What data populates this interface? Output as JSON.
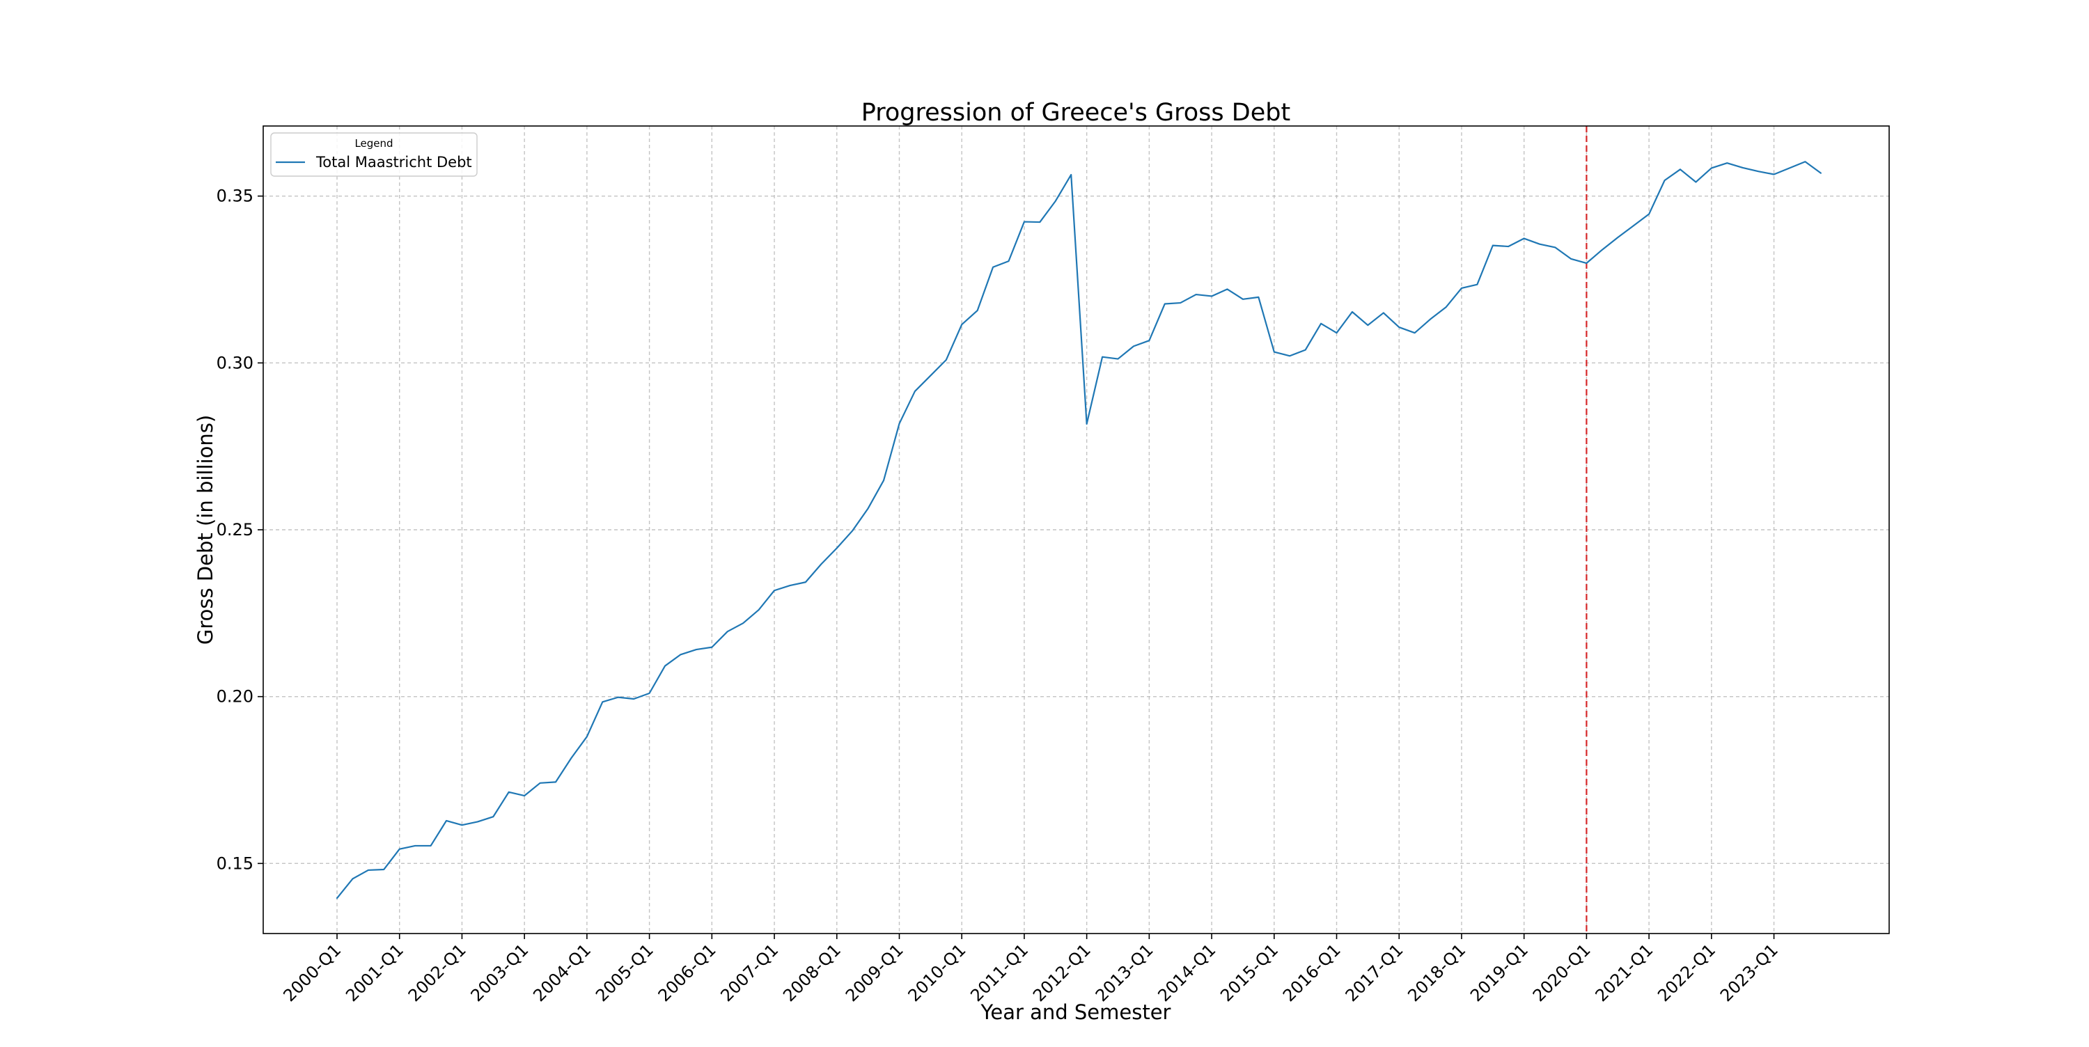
{
  "chart_data": {
    "type": "line",
    "title": "Progression of Greece's Gross Debt",
    "xlabel": "Year and Semester",
    "ylabel": "Gross Debt (in billions)",
    "ylim": [
      0.129,
      0.371
    ],
    "yticks": [
      0.15,
      0.2,
      0.25,
      0.3,
      0.35
    ],
    "ytick_labels": [
      "0.15",
      "0.20",
      "0.25",
      "0.30",
      "0.35"
    ],
    "xtick_labels": [
      "2000-Q1",
      "2001-Q1",
      "2002-Q1",
      "2003-Q1",
      "2004-Q1",
      "2005-Q1",
      "2006-Q1",
      "2007-Q1",
      "2008-Q1",
      "2009-Q1",
      "2010-Q1",
      "2011-Q1",
      "2012-Q1",
      "2013-Q1",
      "2014-Q1",
      "2015-Q1",
      "2016-Q1",
      "2017-Q1",
      "2018-Q1",
      "2019-Q1",
      "2020-Q1",
      "2021-Q1",
      "2022-Q1",
      "2023-Q1"
    ],
    "grid": true,
    "legend": {
      "title": "Legend",
      "position": "upper-left"
    },
    "reference_line": {
      "x": "2020-Q1",
      "color": "#d62728",
      "style": "dashed"
    },
    "series": [
      {
        "name": "Total Maastricht Debt",
        "color": "#1f77b4",
        "x": [
          "2000-Q1",
          "2000-Q2",
          "2000-Q3",
          "2000-Q4",
          "2001-Q1",
          "2001-Q2",
          "2001-Q3",
          "2001-Q4",
          "2002-Q1",
          "2002-Q2",
          "2002-Q3",
          "2002-Q4",
          "2003-Q1",
          "2003-Q2",
          "2003-Q3",
          "2003-Q4",
          "2004-Q1",
          "2004-Q2",
          "2004-Q3",
          "2004-Q4",
          "2005-Q1",
          "2005-Q2",
          "2005-Q3",
          "2005-Q4",
          "2006-Q1",
          "2006-Q2",
          "2006-Q3",
          "2006-Q4",
          "2007-Q1",
          "2007-Q2",
          "2007-Q3",
          "2007-Q4",
          "2008-Q1",
          "2008-Q2",
          "2008-Q3",
          "2008-Q4",
          "2009-Q1",
          "2009-Q2",
          "2009-Q3",
          "2009-Q4",
          "2010-Q1",
          "2010-Q2",
          "2010-Q3",
          "2010-Q4",
          "2011-Q1",
          "2011-Q2",
          "2011-Q3",
          "2011-Q4",
          "2012-Q1",
          "2012-Q2",
          "2012-Q3",
          "2012-Q4",
          "2013-Q1",
          "2013-Q2",
          "2013-Q3",
          "2013-Q4",
          "2014-Q1",
          "2014-Q2",
          "2014-Q3",
          "2014-Q4",
          "2015-Q1",
          "2015-Q2",
          "2015-Q3",
          "2015-Q4",
          "2016-Q1",
          "2016-Q2",
          "2016-Q3",
          "2016-Q4",
          "2017-Q1",
          "2017-Q2",
          "2017-Q3",
          "2017-Q4",
          "2018-Q1",
          "2018-Q2",
          "2018-Q3",
          "2018-Q4",
          "2019-Q1",
          "2019-Q2",
          "2019-Q3",
          "2019-Q4",
          "2020-Q1",
          "2020-Q2",
          "2020-Q3",
          "2020-Q4",
          "2021-Q1",
          "2021-Q2",
          "2021-Q3",
          "2021-Q4",
          "2022-Q1",
          "2022-Q2",
          "2022-Q3",
          "2022-Q4",
          "2023-Q1",
          "2023-Q2",
          "2023-Q3",
          "2023-Q4"
        ],
        "values": [
          0.1396,
          0.1454,
          0.148,
          0.1482,
          0.1543,
          0.1553,
          0.1553,
          0.1628,
          0.1615,
          0.1625,
          0.164,
          0.1714,
          0.1703,
          0.1741,
          0.1744,
          0.1816,
          0.188,
          0.1984,
          0.1998,
          0.1993,
          0.201,
          0.2092,
          0.2126,
          0.2141,
          0.2148,
          0.2195,
          0.222,
          0.226,
          0.2318,
          0.2333,
          0.2343,
          0.2397,
          0.2445,
          0.2497,
          0.2564,
          0.2648,
          0.2818,
          0.2915,
          0.2962,
          0.3009,
          0.3115,
          0.3157,
          0.3287,
          0.3305,
          0.3423,
          0.3422,
          0.3485,
          0.3564,
          0.2817,
          0.3018,
          0.3012,
          0.305,
          0.3067,
          0.3177,
          0.318,
          0.3205,
          0.32,
          0.3221,
          0.3191,
          0.3197,
          0.3033,
          0.3021,
          0.3039,
          0.3118,
          0.309,
          0.3153,
          0.3113,
          0.315,
          0.3107,
          0.309,
          0.3131,
          0.3167,
          0.3224,
          0.3235,
          0.3352,
          0.3349,
          0.3373,
          0.3356,
          0.3346,
          0.3312,
          0.3299,
          0.3339,
          0.3376,
          0.3411,
          0.3446,
          0.3547,
          0.358,
          0.3542,
          0.3584,
          0.3599,
          0.3585,
          0.3574,
          0.3565,
          0.3584,
          0.3603,
          0.3569
        ]
      }
    ]
  }
}
